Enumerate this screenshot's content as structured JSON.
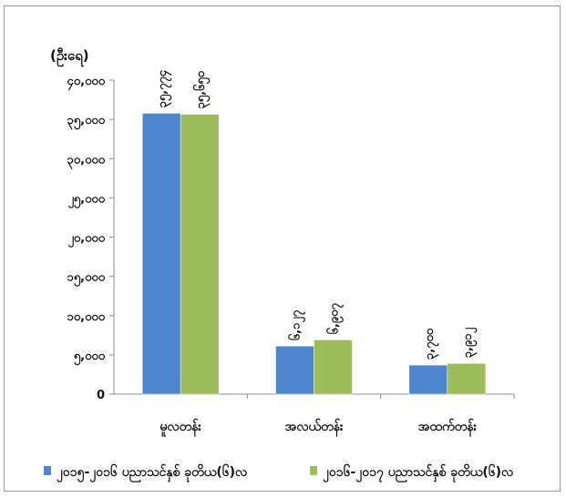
{
  "chart_data": {
    "type": "bar",
    "unit_label": "(ဦးရေ)",
    "title": "",
    "xlabel": "",
    "ylabel": "",
    "ylim": [
      0,
      40000
    ],
    "y_ticks": [
      0,
      5000,
      10000,
      15000,
      20000,
      25000,
      30000,
      35000,
      40000
    ],
    "y_tick_labels": [
      "0",
      "၅,ဝဝဝ",
      "၁ဝ,ဝဝဝ",
      "၁၅,ဝဝဝ",
      "၂ဝ,ဝဝဝ",
      "၂၅,ဝဝဝ",
      "၃ဝ,ဝဝဝ",
      "၃၅,ဝဝဝ",
      "၄ဝ,ဝဝဝ"
    ],
    "categories": [
      "မူလတန်း",
      "အလယ်တန်း",
      "အထက်တန်း"
    ],
    "grid": false,
    "legend_position": "bottom",
    "series": [
      {
        "name": "၂၀၁၅-၂၀၁၆ ပညာသင်နှစ် ခုတိယ(၆)လ",
        "color": "#4f86cf",
        "values": [
          35774,
          6127,
          3700
        ],
        "labels": [
          "၃၅,၇၇၄",
          "၆,၁၂၇",
          "၃,၇၀၀"
        ]
      },
      {
        "name": "၂၀၁၆-၂၀၁၇ ပညာသင်နှစ် ခုတိယ(၆)လ",
        "color": "#9dbc5a",
        "values": [
          35650,
          6907,
          3912
        ],
        "labels": [
          "၃၅,၆၅၀",
          "၆,၉၀၇",
          "၃,၉၁၂"
        ]
      }
    ]
  }
}
